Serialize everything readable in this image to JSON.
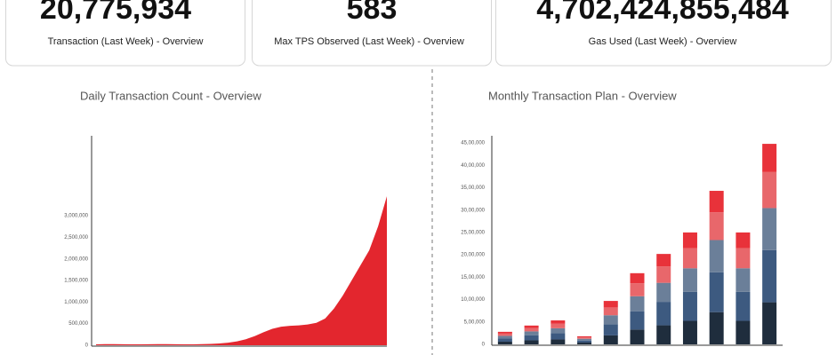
{
  "stats": [
    {
      "value": "20,775,934",
      "label": "Transaction (Last Week) - Overview"
    },
    {
      "value": "583",
      "label": "Max TPS Observed (Last Week) - Overview"
    },
    {
      "value": "4,702,424,855,484",
      "label": "Gas Used (Last Week) - Overview"
    }
  ],
  "chart_data": [
    {
      "type": "area",
      "title": "Daily Transaction Count - Overview",
      "color": "#e3262e",
      "values": [
        20000,
        25000,
        25000,
        22000,
        20000,
        20000,
        22000,
        25000,
        25000,
        22000,
        20000,
        20000,
        25000,
        30000,
        40000,
        60000,
        90000,
        140000,
        210000,
        300000,
        380000,
        430000,
        450000,
        460000,
        480000,
        520000,
        620000,
        850000,
        1150000,
        1500000,
        1850000,
        2200000,
        2750000,
        3450000
      ],
      "ylim": [
        0,
        4850000
      ],
      "yticks": [
        0,
        {
          "value": 500000,
          "label": "500,000"
        },
        {
          "value": 1000000,
          "label": "1,000,000"
        },
        {
          "value": 1500000,
          "label": "1,500,000"
        },
        {
          "value": 2000000,
          "label": "2,000,000"
        },
        {
          "value": 2500000,
          "label": "2,500,000"
        },
        {
          "value": 3000000,
          "label": "3,000,000"
        }
      ]
    },
    {
      "type": "stacked_bar",
      "title": "Monthly Transaction Plan - Overview",
      "series": [
        {
          "color": "#1f2d3d",
          "values": [
            60000,
            90000,
            110000,
            40000,
            200000,
            330000,
            425000,
            525000,
            720000,
            525000,
            940000
          ]
        },
        {
          "color": "#3d5a80",
          "values": [
            70000,
            110000,
            140000,
            45000,
            250000,
            410000,
            525000,
            650000,
            890000,
            650000,
            1165000
          ]
        },
        {
          "color": "#6b7f99",
          "values": [
            60000,
            90000,
            110000,
            40000,
            200000,
            335000,
            425000,
            525000,
            720000,
            525000,
            940000
          ]
        },
        {
          "color": "#e8676b",
          "values": [
            50000,
            75000,
            100000,
            30000,
            175000,
            290000,
            365000,
            450000,
            620000,
            450000,
            805000
          ]
        },
        {
          "color": "#e8323a",
          "values": [
            40000,
            55000,
            75000,
            25000,
            145000,
            225000,
            280000,
            350000,
            480000,
            350000,
            630000
          ]
        }
      ],
      "ylim": [
        0,
        4660000
      ],
      "yticks": [
        0,
        {
          "value": 500000,
          "label": "5,00,000"
        },
        {
          "value": 1000000,
          "label": "10,00,000"
        },
        {
          "value": 1500000,
          "label": "15,00,000"
        },
        {
          "value": 2000000,
          "label": "20,00,000"
        },
        {
          "value": 2500000,
          "label": "25,00,000"
        },
        {
          "value": 3000000,
          "label": "30,00,000"
        },
        {
          "value": 3500000,
          "label": "35,00,000"
        },
        {
          "value": 4000000,
          "label": "40,00,000"
        },
        {
          "value": 4500000,
          "label": "45,00,000"
        }
      ]
    }
  ]
}
